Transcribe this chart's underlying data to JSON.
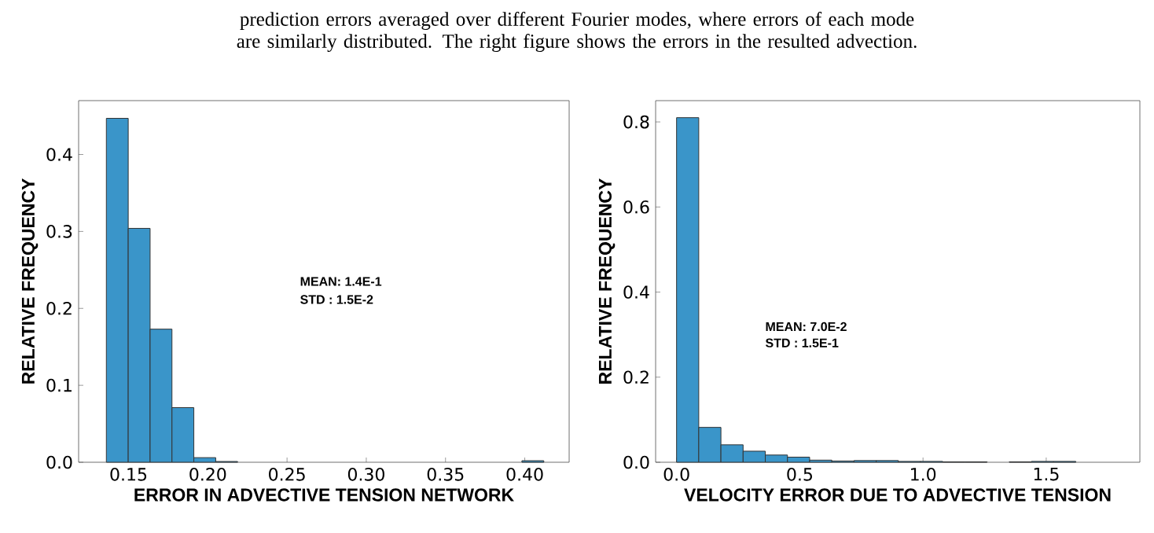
{
  "chart_data": [
    {
      "type": "histogram",
      "xlabel": "ERROR IN ADVECTIVE TENSION NETWORK",
      "ylabel": "RELATIVE FREQUENCY",
      "color": "#3a95c9",
      "annotations": [
        "prediction errors averaged over different Fourier modes, where errors of each mode are similarly distributed. The right figure shows the errors in the resulted advection.",
        "MEAN: 1.4E-1",
        "STD    : 1.5E-2"
      ],
      "bins": [
        0.136,
        0.1498,
        0.1636,
        0.1774,
        0.1912,
        0.205,
        0.2188,
        0.2326,
        0.2464,
        0.2602,
        0.274,
        0.2878,
        0.3016,
        0.3154,
        0.3292,
        0.343,
        0.3568,
        0.3706,
        0.3844,
        0.3982,
        0.412
      ],
      "values": [
        0.447,
        0.304,
        0.173,
        0.071,
        0.006,
        0.001,
        0,
        0,
        0,
        0,
        0,
        0,
        0,
        0,
        0,
        0,
        0,
        0,
        0,
        0.002
      ],
      "xlim": [
        0.1185,
        0.428
      ],
      "ylim": [
        0,
        0.47
      ],
      "xticks": [
        0.15,
        {
          "value": 0.2,
          "label": "0.20"
        },
        0.25,
        {
          "value": 0.3,
          "label": "0.30"
        },
        0.35,
        {
          "value": 0.4,
          "label": "0.40"
        }
      ],
      "yticks": [
        {
          "value": 0,
          "label": "0.0"
        },
        0.1,
        0.2,
        0.3,
        0.4
      ]
    },
    {
      "type": "histogram",
      "xlabel": "VELOCITY ERROR DUE TO ADVECTIVE TENSION",
      "ylabel": "RELATIVE FREQUENCY",
      "color": "#3a95c9",
      "annotations": [
        "MEAN: 7.0E-2",
        "STD    : 1.5E-1"
      ],
      "bins": [
        0,
        0.09,
        0.18,
        0.27,
        0.36,
        0.45,
        0.54,
        0.63,
        0.72,
        0.81,
        0.9,
        0.99,
        1.08,
        1.17,
        1.26,
        1.35,
        1.44,
        1.53,
        1.62,
        1.71,
        1.8
      ],
      "values": [
        0.81,
        0.082,
        0.041,
        0.026,
        0.017,
        0.012,
        0.005,
        0.003,
        0.004,
        0.004,
        0.002,
        0.002,
        0.001,
        0.001,
        0,
        0.001,
        0.002,
        0.002,
        0,
        0
      ],
      "xlim": [
        -0.085,
        1.88
      ],
      "ylim": [
        0,
        0.85
      ],
      "xticks": [
        {
          "value": 0,
          "label": "0.0"
        },
        0.5,
        {
          "value": 1,
          "label": "1.0"
        },
        1.5
      ],
      "yticks": [
        {
          "value": 0,
          "label": "0.0"
        },
        0.2,
        0.4,
        0.6,
        0.8
      ]
    }
  ]
}
